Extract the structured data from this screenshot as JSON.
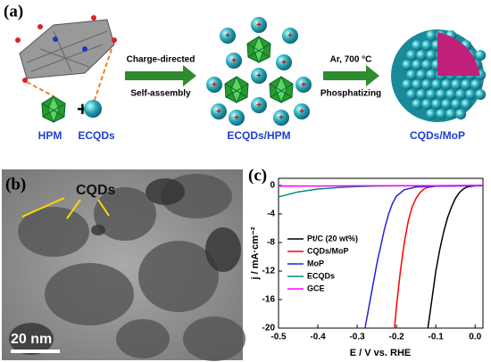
{
  "panel_a": {
    "label": "(a)",
    "hpm": "HPM",
    "ecqds": "ECQDs",
    "step1_top": "Charge-directed",
    "step1_bottom": "Self-assembly",
    "intermediate": "ECQDs/HPM",
    "step2_top": "Ar, 700 °C",
    "step2_bottom": "Phosphatizing",
    "product": "CQDs/MoP"
  },
  "panel_b": {
    "label": "(b)",
    "annotation": "CQDs",
    "scale_bar": "20 nm"
  },
  "panel_c": {
    "label": "(c)"
  },
  "chart_data": {
    "type": "line",
    "x_label": "E / V vs. RHE",
    "y_label": "j / mA·cm⁻²",
    "xlim": [
      -0.5,
      0.02
    ],
    "ylim": [
      -20,
      1
    ],
    "xticks": [
      -0.5,
      -0.4,
      -0.3,
      -0.2,
      -0.1,
      {
        "value": 0,
        "label": "0.0"
      }
    ],
    "yticks": [
      0,
      -4,
      -8,
      -12,
      -16,
      -20
    ],
    "legend": "left",
    "series": [
      {
        "name": "Pt/C (20 wt%)",
        "color": "#000000",
        "x": [
          -0.12,
          -0.11,
          -0.1,
          -0.09,
          -0.08,
          -0.07,
          -0.06,
          -0.05,
          -0.04,
          -0.03,
          -0.02,
          0.0,
          0.02
        ],
        "values": [
          -20,
          -16,
          -12,
          -9,
          -6.5,
          -4.5,
          -3,
          -1.8,
          -1,
          -0.5,
          -0.2,
          -0.05,
          0
        ]
      },
      {
        "name": "CQDs/MoP",
        "color": "#ff0000",
        "x": [
          -0.205,
          -0.2,
          -0.19,
          -0.18,
          -0.17,
          -0.16,
          -0.15,
          -0.14,
          -0.13,
          -0.12,
          -0.1,
          -0.05,
          0.02
        ],
        "values": [
          -20,
          -17,
          -12,
          -8,
          -5,
          -3,
          -1.8,
          -1,
          -0.5,
          -0.25,
          -0.1,
          -0.05,
          0
        ]
      },
      {
        "name": "MoP",
        "color": "#2222dd",
        "x": [
          -0.28,
          -0.27,
          -0.26,
          -0.25,
          -0.24,
          -0.23,
          -0.22,
          -0.21,
          -0.2,
          -0.18,
          -0.15,
          -0.1,
          0.02
        ],
        "values": [
          -20,
          -17,
          -14,
          -11,
          -8.5,
          -6,
          -4,
          -2.5,
          -1.5,
          -0.6,
          -0.2,
          -0.1,
          -0.05
        ]
      },
      {
        "name": "ECQDs",
        "color": "#008b80",
        "x": [
          -0.5,
          -0.45,
          -0.4,
          -0.35,
          -0.3,
          -0.25,
          -0.2,
          -0.1,
          0.02
        ],
        "values": [
          -1.6,
          -0.9,
          -0.5,
          -0.3,
          -0.15,
          -0.08,
          -0.05,
          -0.02,
          0
        ]
      },
      {
        "name": "GCE",
        "color": "#ff00ff",
        "x": [
          -0.5,
          -0.3,
          -0.1,
          0.02
        ],
        "values": [
          -0.1,
          -0.05,
          -0.02,
          0
        ]
      }
    ]
  }
}
